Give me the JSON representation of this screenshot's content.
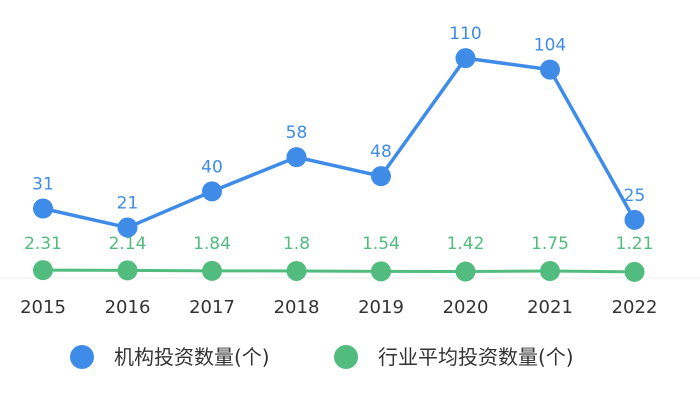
{
  "chart_data": {
    "type": "line",
    "categories": [
      "2015",
      "2016",
      "2017",
      "2018",
      "2019",
      "2020",
      "2021",
      "2022"
    ],
    "series": [
      {
        "name": "机构投资数量(个)",
        "color": "#3F8CE8",
        "values": [
          31,
          21,
          40,
          58,
          48,
          110,
          104,
          25
        ],
        "labels": [
          "31",
          "21",
          "40",
          "58",
          "48",
          "110",
          "104",
          "25"
        ]
      },
      {
        "name": "行业平均投资数量(个)",
        "color": "#52BC7E",
        "values": [
          2.31,
          2.14,
          1.84,
          1.8,
          1.54,
          1.42,
          1.75,
          1.21
        ],
        "labels": [
          "2.31",
          "2.14",
          "1.84",
          "1.8",
          "1.54",
          "1.42",
          "1.75",
          "1.21"
        ]
      }
    ],
    "legend_position": "bottom",
    "grid": false
  }
}
